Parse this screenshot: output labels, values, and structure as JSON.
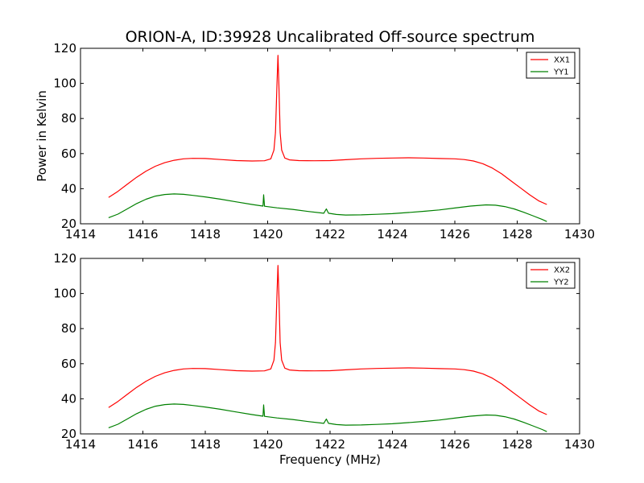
{
  "figure": {
    "title": "ORION-A, ID:39928 Uncalibrated Off-source spectrum",
    "xlabel": "Frequency (MHz)",
    "ylabel": "Power in Kelvin"
  },
  "colors": {
    "xx": "#ff0000",
    "yy": "#008000"
  },
  "chart_data": [
    {
      "type": "line",
      "title": "ORION-A, ID:39928 Uncalibrated Off-source spectrum",
      "xlabel": "",
      "ylabel": "Power in Kelvin",
      "xlim": [
        1414,
        1430
      ],
      "ylim": [
        20,
        120
      ],
      "xticks": [
        "1414",
        "1416",
        "1418",
        "1420",
        "1422",
        "1424",
        "1426",
        "1428",
        "1430"
      ],
      "yticks": [
        "20",
        "40",
        "60",
        "80",
        "100",
        "120"
      ],
      "grid": false,
      "legend_position": "top-right",
      "series": [
        {
          "name": "XX1",
          "color": "#ff0000",
          "points": [
            [
              1414.9,
              35
            ],
            [
              1415.2,
              38.5
            ],
            [
              1415.5,
              42.5
            ],
            [
              1415.8,
              46.5
            ],
            [
              1416.1,
              50
            ],
            [
              1416.4,
              52.8
            ],
            [
              1416.7,
              54.8
            ],
            [
              1417.0,
              56.2
            ],
            [
              1417.3,
              57
            ],
            [
              1417.6,
              57.3
            ],
            [
              1418.0,
              57.2
            ],
            [
              1418.5,
              56.6
            ],
            [
              1419.0,
              56
            ],
            [
              1419.5,
              55.8
            ],
            [
              1419.9,
              55.9
            ],
            [
              1420.1,
              57
            ],
            [
              1420.2,
              62
            ],
            [
              1420.25,
              72
            ],
            [
              1420.3,
              100
            ],
            [
              1420.33,
              116
            ],
            [
              1420.36,
              100
            ],
            [
              1420.4,
              72
            ],
            [
              1420.45,
              62
            ],
            [
              1420.55,
              57.5
            ],
            [
              1420.7,
              56.4
            ],
            [
              1421.0,
              56
            ],
            [
              1421.5,
              55.9
            ],
            [
              1422.0,
              56
            ],
            [
              1422.5,
              56.5
            ],
            [
              1423.0,
              57
            ],
            [
              1423.5,
              57.3
            ],
            [
              1424.0,
              57.5
            ],
            [
              1424.5,
              57.6
            ],
            [
              1425.0,
              57.5
            ],
            [
              1425.5,
              57.2
            ],
            [
              1426.0,
              57
            ],
            [
              1426.3,
              56.6
            ],
            [
              1426.6,
              55.8
            ],
            [
              1426.9,
              54.2
            ],
            [
              1427.2,
              51.8
            ],
            [
              1427.5,
              48.5
            ],
            [
              1427.8,
              44.5
            ],
            [
              1428.1,
              40.5
            ],
            [
              1428.4,
              36.5
            ],
            [
              1428.7,
              33
            ],
            [
              1428.95,
              31
            ]
          ]
        },
        {
          "name": "YY1",
          "color": "#008000",
          "points": [
            [
              1414.9,
              23.5
            ],
            [
              1415.2,
              25.5
            ],
            [
              1415.5,
              28.5
            ],
            [
              1415.8,
              31.5
            ],
            [
              1416.1,
              34
            ],
            [
              1416.4,
              35.8
            ],
            [
              1416.7,
              36.7
            ],
            [
              1417.0,
              37
            ],
            [
              1417.3,
              36.8
            ],
            [
              1417.6,
              36.2
            ],
            [
              1418.0,
              35.3
            ],
            [
              1418.5,
              34
            ],
            [
              1419.0,
              32.5
            ],
            [
              1419.5,
              31
            ],
            [
              1419.85,
              30.1
            ],
            [
              1419.87,
              36.5
            ],
            [
              1419.9,
              30
            ],
            [
              1420.3,
              29.1
            ],
            [
              1420.8,
              28.2
            ],
            [
              1421.3,
              27
            ],
            [
              1421.8,
              26
            ],
            [
              1421.88,
              28.5
            ],
            [
              1421.95,
              26
            ],
            [
              1422.2,
              25.3
            ],
            [
              1422.5,
              25
            ],
            [
              1423.0,
              25.1
            ],
            [
              1423.5,
              25.4
            ],
            [
              1424.0,
              25.8
            ],
            [
              1424.5,
              26.4
            ],
            [
              1425.0,
              27.1
            ],
            [
              1425.5,
              27.9
            ],
            [
              1426.0,
              29
            ],
            [
              1426.5,
              30.1
            ],
            [
              1427.0,
              30.8
            ],
            [
              1427.3,
              30.6
            ],
            [
              1427.6,
              29.8
            ],
            [
              1427.9,
              28.5
            ],
            [
              1428.2,
              26.6
            ],
            [
              1428.5,
              24.6
            ],
            [
              1428.8,
              22.5
            ],
            [
              1428.95,
              21.3
            ]
          ]
        }
      ]
    },
    {
      "type": "line",
      "title": "",
      "xlabel": "Frequency (MHz)",
      "ylabel": "",
      "xlim": [
        1414,
        1430
      ],
      "ylim": [
        20,
        120
      ],
      "xticks": [
        "1414",
        "1416",
        "1418",
        "1420",
        "1422",
        "1424",
        "1426",
        "1428",
        "1430"
      ],
      "yticks": [
        "20",
        "40",
        "60",
        "80",
        "100",
        "120"
      ],
      "grid": false,
      "legend_position": "top-right",
      "series": [
        {
          "name": "XX2",
          "color": "#ff0000",
          "points": [
            [
              1414.9,
              35
            ],
            [
              1415.2,
              38.5
            ],
            [
              1415.5,
              42.5
            ],
            [
              1415.8,
              46.5
            ],
            [
              1416.1,
              50
            ],
            [
              1416.4,
              52.8
            ],
            [
              1416.7,
              54.8
            ],
            [
              1417.0,
              56.2
            ],
            [
              1417.3,
              57
            ],
            [
              1417.6,
              57.3
            ],
            [
              1418.0,
              57.2
            ],
            [
              1418.5,
              56.6
            ],
            [
              1419.0,
              56
            ],
            [
              1419.5,
              55.8
            ],
            [
              1419.9,
              55.9
            ],
            [
              1420.1,
              57
            ],
            [
              1420.2,
              62
            ],
            [
              1420.25,
              72
            ],
            [
              1420.3,
              100
            ],
            [
              1420.33,
              116
            ],
            [
              1420.36,
              100
            ],
            [
              1420.4,
              72
            ],
            [
              1420.45,
              62
            ],
            [
              1420.55,
              57.5
            ],
            [
              1420.7,
              56.4
            ],
            [
              1421.0,
              56
            ],
            [
              1421.5,
              55.9
            ],
            [
              1422.0,
              56
            ],
            [
              1422.5,
              56.5
            ],
            [
              1423.0,
              57
            ],
            [
              1423.5,
              57.3
            ],
            [
              1424.0,
              57.5
            ],
            [
              1424.5,
              57.6
            ],
            [
              1425.0,
              57.5
            ],
            [
              1425.5,
              57.2
            ],
            [
              1426.0,
              57
            ],
            [
              1426.3,
              56.6
            ],
            [
              1426.6,
              55.8
            ],
            [
              1426.9,
              54.2
            ],
            [
              1427.2,
              51.8
            ],
            [
              1427.5,
              48.5
            ],
            [
              1427.8,
              44.5
            ],
            [
              1428.1,
              40.5
            ],
            [
              1428.4,
              36.5
            ],
            [
              1428.7,
              33
            ],
            [
              1428.95,
              31
            ]
          ]
        },
        {
          "name": "YY2",
          "color": "#008000",
          "points": [
            [
              1414.9,
              23.5
            ],
            [
              1415.2,
              25.5
            ],
            [
              1415.5,
              28.5
            ],
            [
              1415.8,
              31.5
            ],
            [
              1416.1,
              34
            ],
            [
              1416.4,
              35.8
            ],
            [
              1416.7,
              36.7
            ],
            [
              1417.0,
              37
            ],
            [
              1417.3,
              36.8
            ],
            [
              1417.6,
              36.2
            ],
            [
              1418.0,
              35.3
            ],
            [
              1418.5,
              34
            ],
            [
              1419.0,
              32.5
            ],
            [
              1419.5,
              31
            ],
            [
              1419.85,
              30.1
            ],
            [
              1419.87,
              36.5
            ],
            [
              1419.9,
              30
            ],
            [
              1420.3,
              29.1
            ],
            [
              1420.8,
              28.2
            ],
            [
              1421.3,
              27
            ],
            [
              1421.8,
              26
            ],
            [
              1421.88,
              28.5
            ],
            [
              1421.95,
              26
            ],
            [
              1422.2,
              25.3
            ],
            [
              1422.5,
              25
            ],
            [
              1423.0,
              25.1
            ],
            [
              1423.5,
              25.4
            ],
            [
              1424.0,
              25.8
            ],
            [
              1424.5,
              26.4
            ],
            [
              1425.0,
              27.1
            ],
            [
              1425.5,
              27.9
            ],
            [
              1426.0,
              29
            ],
            [
              1426.5,
              30.1
            ],
            [
              1427.0,
              30.8
            ],
            [
              1427.3,
              30.6
            ],
            [
              1427.6,
              29.8
            ],
            [
              1427.9,
              28.5
            ],
            [
              1428.2,
              26.6
            ],
            [
              1428.5,
              24.6
            ],
            [
              1428.8,
              22.5
            ],
            [
              1428.95,
              21.3
            ]
          ]
        }
      ]
    }
  ]
}
